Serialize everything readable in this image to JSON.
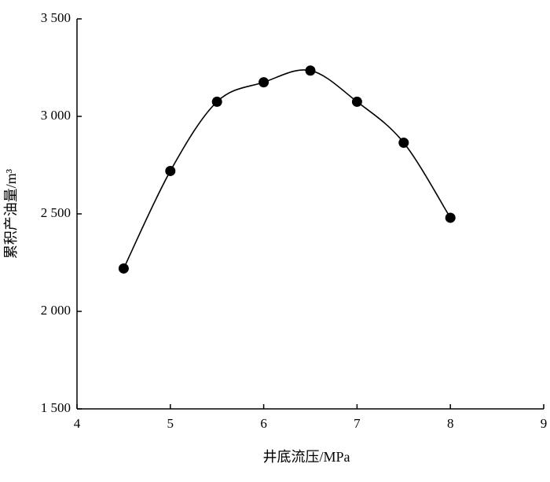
{
  "chart_data": {
    "type": "scatter",
    "xlabel": "井底流压/MPa",
    "ylabel": "累积产油量/m³",
    "x": [
      4.5,
      5,
      5.5,
      6,
      6.5,
      7,
      7.5,
      8
    ],
    "values": [
      2220,
      2720,
      3075,
      3175,
      3235,
      3075,
      2865,
      2480
    ],
    "color": "#000000",
    "smooth_line": true,
    "xlim": [
      4,
      9
    ],
    "xticks": [
      4,
      5,
      6,
      7,
      8,
      9
    ],
    "ylim": [
      1500,
      3500
    ],
    "yticks": [
      {
        "value": 1500,
        "label": "1 500"
      },
      {
        "value": 2000,
        "label": "2 000"
      },
      {
        "value": 2500,
        "label": "2 500"
      },
      {
        "value": 3000,
        "label": "3 000"
      },
      {
        "value": 3500,
        "label": "3 500"
      }
    ],
    "grid": false
  }
}
